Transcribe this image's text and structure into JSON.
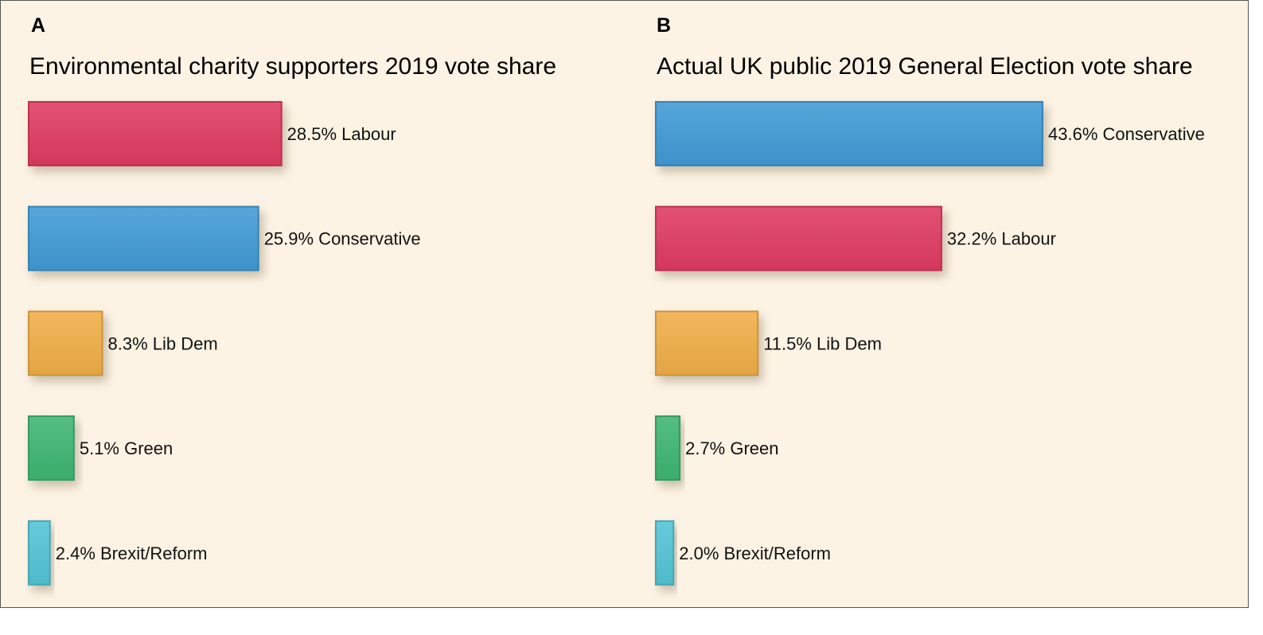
{
  "chart_data": [
    {
      "panel": "A",
      "type": "bar",
      "orientation": "horizontal",
      "title": "Environmental charity supporters 2019 vote share",
      "categories": [
        "Labour",
        "Conservative",
        "Lib Dem",
        "Green",
        "Brexit/Reform"
      ],
      "values": [
        28.5,
        25.9,
        8.3,
        5.1,
        2.4
      ],
      "labels": [
        "28.5% Labour",
        "25.9% Conservative",
        "8.3% Lib Dem",
        "5.1% Green",
        "2.4% Brexit/Reform"
      ],
      "colors": [
        "#de3a60",
        "#3f9ad5",
        "#f0ad46",
        "#3db572",
        "#52c3d6"
      ],
      "xlim": [
        0,
        43.6
      ],
      "grid": false,
      "legend": "none"
    },
    {
      "panel": "B",
      "type": "bar",
      "orientation": "horizontal",
      "title": "Actual UK public 2019 General Election vote share",
      "categories": [
        "Conservative",
        "Labour",
        "Lib Dem",
        "Green",
        "Brexit/Reform"
      ],
      "values": [
        43.6,
        32.2,
        11.5,
        2.7,
        2.0
      ],
      "labels": [
        "43.6% Conservative",
        "32.2% Labour",
        "11.5% Lib Dem",
        "2.7% Green",
        "2.0% Brexit/Reform"
      ],
      "colors": [
        "#3f9ad5",
        "#de3a60",
        "#f0ad46",
        "#3db572",
        "#52c3d6"
      ],
      "xlim": [
        0,
        43.6
      ],
      "grid": false,
      "legend": "none"
    }
  ]
}
